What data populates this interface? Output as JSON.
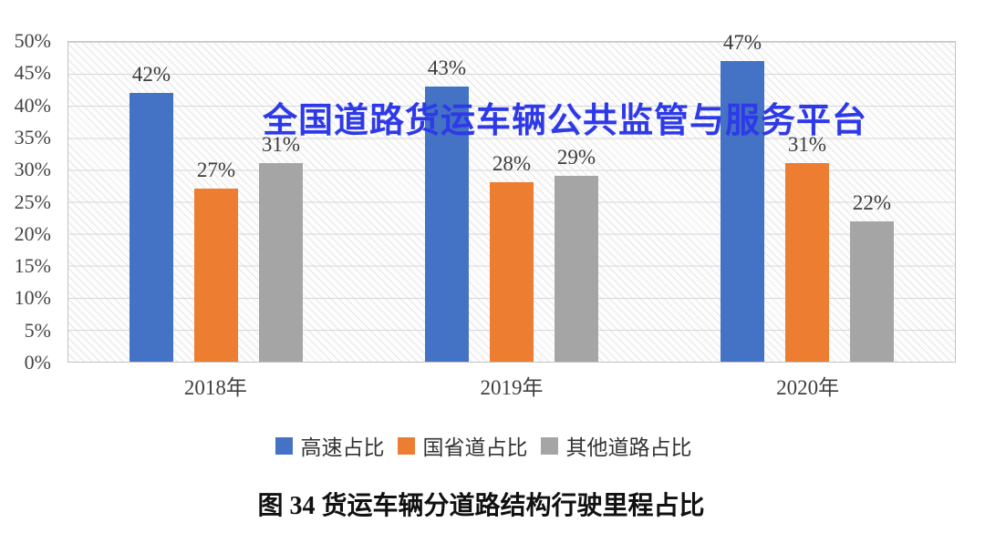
{
  "watermark": {
    "text": "全国道路货运车辆公共监管与服务平台",
    "color": "#2E3AE8"
  },
  "caption": "图 34 货运车辆分道路结构行驶里程占比",
  "chart_data": {
    "type": "bar",
    "title": "",
    "xlabel": "",
    "ylabel": "",
    "categories": [
      "2018年",
      "2019年",
      "2020年"
    ],
    "series": [
      {
        "name": "高速占比",
        "color": "#4472C4",
        "values": [
          42,
          43,
          47
        ]
      },
      {
        "name": "国省道占比",
        "color": "#ED7D31",
        "values": [
          27,
          28,
          31
        ]
      },
      {
        "name": "其他道路占比",
        "color": "#A5A5A5",
        "values": [
          31,
          29,
          22
        ]
      }
    ],
    "data_label_suffix": "%",
    "yticks": [
      "0%",
      "5%",
      "10%",
      "15%",
      "20%",
      "25%",
      "30%",
      "35%",
      "40%",
      "45%",
      "50%"
    ],
    "ylim": [
      0,
      50
    ],
    "grid": "horizontal",
    "plot_background": "diagonal-hatch",
    "legend_position": "bottom"
  }
}
